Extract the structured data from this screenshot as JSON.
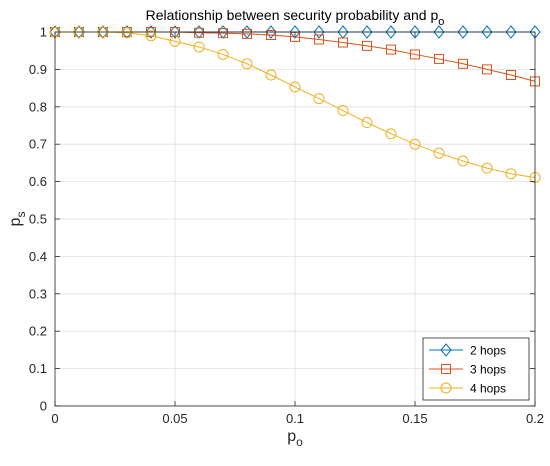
{
  "chart_data": {
    "type": "line",
    "title_main": "Relationship between security probability and p",
    "title_sub": "o",
    "xlabel_main": "p",
    "xlabel_sub": "o",
    "ylabel_main": "p",
    "ylabel_sub": "s",
    "xlim": [
      0,
      0.2
    ],
    "ylim": [
      0,
      1
    ],
    "xticks": [
      "0",
      "0.05",
      "0.1",
      "0.15",
      "0.2"
    ],
    "yticks": [
      "0",
      "0.1",
      "0.2",
      "0.3",
      "0.4",
      "0.5",
      "0.6",
      "0.7",
      "0.8",
      "0.9",
      "1"
    ],
    "grid": true,
    "legend_position": "bottom-right",
    "x": [
      0,
      0.01,
      0.02,
      0.03,
      0.04,
      0.05,
      0.06,
      0.07,
      0.08,
      0.09,
      0.1,
      0.11,
      0.12,
      0.13,
      0.14,
      0.15,
      0.16,
      0.17,
      0.18,
      0.19,
      0.2
    ],
    "series": [
      {
        "name": "2 hops",
        "color": "#0072BD",
        "marker": "diamond",
        "values": [
          1,
          1,
          1,
          1,
          1,
          1,
          1,
          1,
          1,
          1,
          1,
          1,
          1,
          1,
          1,
          1,
          1,
          1,
          1,
          1,
          1
        ]
      },
      {
        "name": "3 hops",
        "color": "#D95319",
        "marker": "square",
        "values": [
          1,
          1,
          1,
          1,
          1,
          1,
          0.998,
          0.997,
          0.995,
          0.992,
          0.987,
          0.98,
          0.972,
          0.963,
          0.953,
          0.94,
          0.928,
          0.915,
          0.9,
          0.885,
          0.868
        ]
      },
      {
        "name": "4 hops",
        "color": "#EDB120",
        "marker": "circle",
        "values": [
          1,
          1,
          1,
          0.998,
          0.99,
          0.975,
          0.96,
          0.94,
          0.915,
          0.885,
          0.853,
          0.822,
          0.79,
          0.758,
          0.728,
          0.7,
          0.676,
          0.655,
          0.636,
          0.621,
          0.611
        ]
      }
    ]
  }
}
